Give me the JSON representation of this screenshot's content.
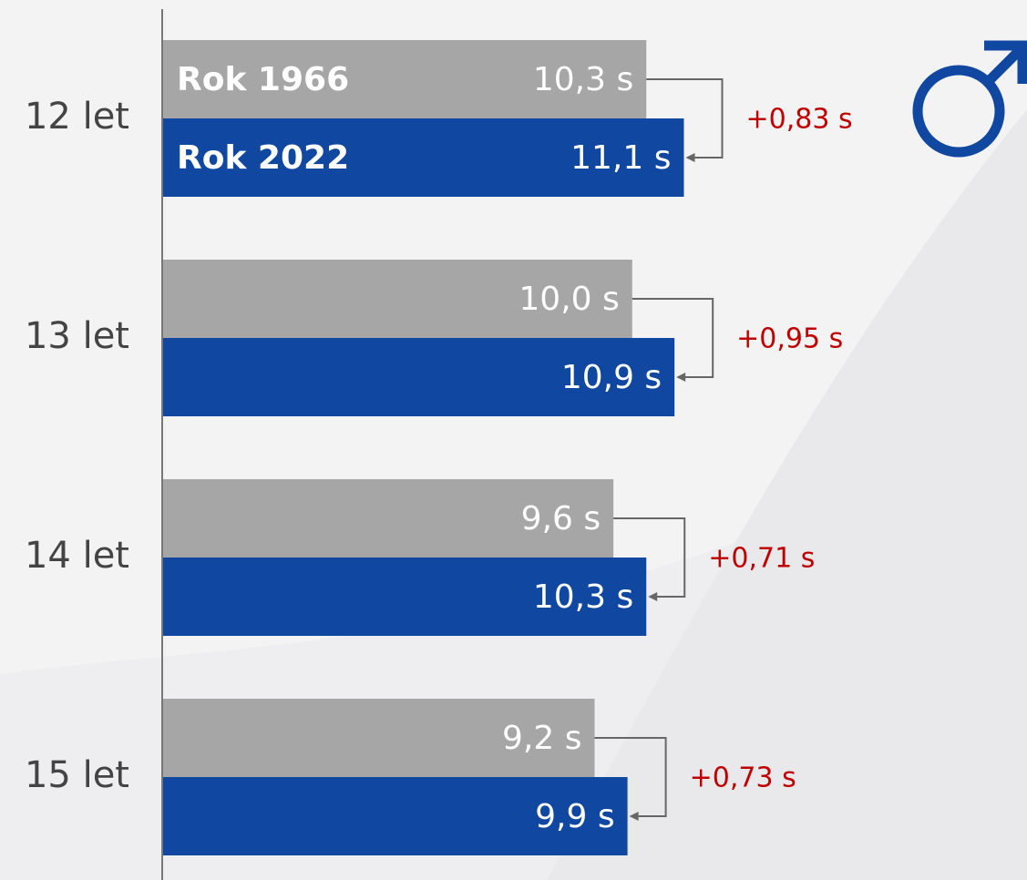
{
  "chart_data": {
    "type": "hbar",
    "categories": [
      "12 let",
      "13 let",
      "14 let",
      "15 let"
    ],
    "series": [
      {
        "name": "Rok 1966",
        "color": "#a6a6a6",
        "values": [
          10.3,
          10.0,
          9.6,
          9.2
        ],
        "value_labels": [
          "10,3 s",
          "10,0 s",
          "9,6 s",
          "9,2 s"
        ]
      },
      {
        "name": "Rok 2022",
        "color": "#0f47a1",
        "values": [
          11.1,
          10.9,
          10.3,
          9.9
        ],
        "value_labels": [
          "11,1 s",
          "10,9 s",
          "10,3 s",
          "9,9 s"
        ]
      }
    ],
    "annotations": [
      "+0,83 s",
      "+0,95 s",
      "+0,71 s",
      "+0,73 s"
    ],
    "annotation_color": "#c00000",
    "xlim": [
      0,
      18.4
    ]
  }
}
